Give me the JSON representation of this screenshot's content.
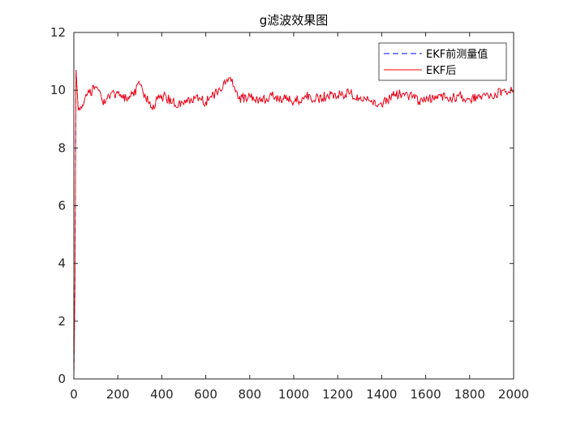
{
  "chart_data": {
    "type": "line",
    "title": "g滤波效果图",
    "xlabel": "",
    "ylabel": "",
    "xlim": [
      0,
      2000
    ],
    "ylim": [
      0,
      12
    ],
    "xticks": [
      "0",
      "200",
      "400",
      "600",
      "800",
      "1000",
      "1200",
      "1400",
      "1600",
      "1800",
      "2000"
    ],
    "yticks": [
      "0",
      "2",
      "4",
      "6",
      "8",
      "10",
      "12"
    ],
    "grid": false,
    "legend_position": "top-right",
    "series": [
      {
        "name": "EKF前测量值",
        "color": "#0000ff",
        "style": "dashed",
        "x": [
          0,
          5,
          10,
          20,
          40,
          70,
          100,
          130,
          160,
          200,
          250,
          300,
          350,
          400,
          450,
          500,
          550,
          600,
          650,
          700,
          720,
          750,
          800,
          850,
          900,
          950,
          1000,
          1050,
          1100,
          1150,
          1200,
          1250,
          1300,
          1350,
          1400,
          1450,
          1500,
          1550,
          1600,
          1650,
          1700,
          1750,
          1800,
          1850,
          1900,
          1950,
          2000
        ],
        "y": [
          0,
          3.2,
          10.7,
          9.3,
          9.5,
          9.9,
          10.1,
          9.6,
          9.8,
          9.9,
          9.7,
          10.2,
          9.4,
          9.8,
          9.6,
          9.5,
          9.7,
          9.6,
          9.9,
          10.3,
          10.4,
          9.7,
          9.8,
          9.6,
          9.8,
          9.7,
          9.6,
          9.8,
          9.7,
          9.8,
          9.8,
          9.9,
          9.7,
          9.6,
          9.5,
          9.8,
          9.9,
          9.7,
          9.6,
          9.8,
          9.7,
          9.8,
          9.7,
          9.8,
          9.8,
          10.0,
          10.0
        ]
      },
      {
        "name": "EKF后",
        "color": "#ff0000",
        "style": "solid",
        "x": [
          0,
          5,
          10,
          20,
          40,
          70,
          100,
          130,
          160,
          200,
          250,
          300,
          350,
          400,
          450,
          500,
          550,
          600,
          650,
          700,
          720,
          750,
          800,
          850,
          900,
          950,
          1000,
          1050,
          1100,
          1150,
          1200,
          1250,
          1300,
          1350,
          1400,
          1450,
          1500,
          1550,
          1600,
          1650,
          1700,
          1750,
          1800,
          1850,
          1900,
          1950,
          2000
        ],
        "y": [
          0,
          3.2,
          10.7,
          9.3,
          9.5,
          9.9,
          10.1,
          9.6,
          9.8,
          9.9,
          9.7,
          10.2,
          9.4,
          9.8,
          9.6,
          9.5,
          9.7,
          9.6,
          9.9,
          10.3,
          10.4,
          9.7,
          9.8,
          9.6,
          9.8,
          9.7,
          9.6,
          9.8,
          9.7,
          9.8,
          9.8,
          9.9,
          9.7,
          9.6,
          9.5,
          9.8,
          9.9,
          9.7,
          9.6,
          9.8,
          9.7,
          9.8,
          9.7,
          9.8,
          9.8,
          10.0,
          10.0
        ]
      }
    ]
  }
}
